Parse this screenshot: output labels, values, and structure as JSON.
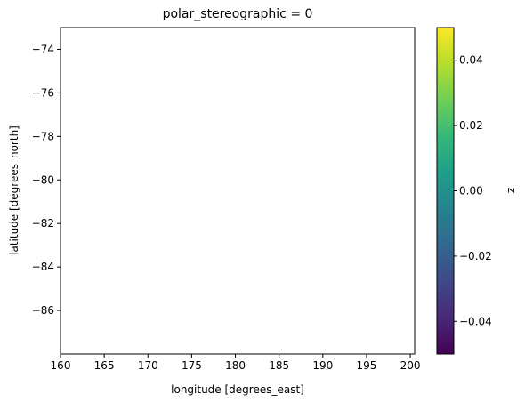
{
  "chart_data": {
    "type": "heatmap",
    "title": "polar_stereographic = 0",
    "xlabel": "longitude [degrees_east]",
    "ylabel": "latitude [degrees_north]",
    "xlim": [
      160,
      200.5
    ],
    "ylim": [
      -88,
      -73
    ],
    "x_ticks": [
      160,
      165,
      170,
      175,
      180,
      185,
      190,
      195,
      200
    ],
    "y_ticks": [
      -74,
      -76,
      -78,
      -80,
      -82,
      -84,
      -86
    ],
    "values": [],
    "colorbar": {
      "label": "z",
      "colormap": "viridis",
      "range": [
        -0.05,
        0.05
      ],
      "ticks": [
        0.04,
        0.02,
        0.0,
        -0.02,
        -0.04
      ],
      "tick_labels": [
        "0.04",
        "0.02",
        "0.00",
        "−0.02",
        "−0.04"
      ],
      "colors": [
        "#440154",
        "#482878",
        "#3e4989",
        "#31688e",
        "#26828e",
        "#1f9e89",
        "#35b779",
        "#6ece58",
        "#b5de2b",
        "#fde725"
      ]
    },
    "grid": false
  }
}
